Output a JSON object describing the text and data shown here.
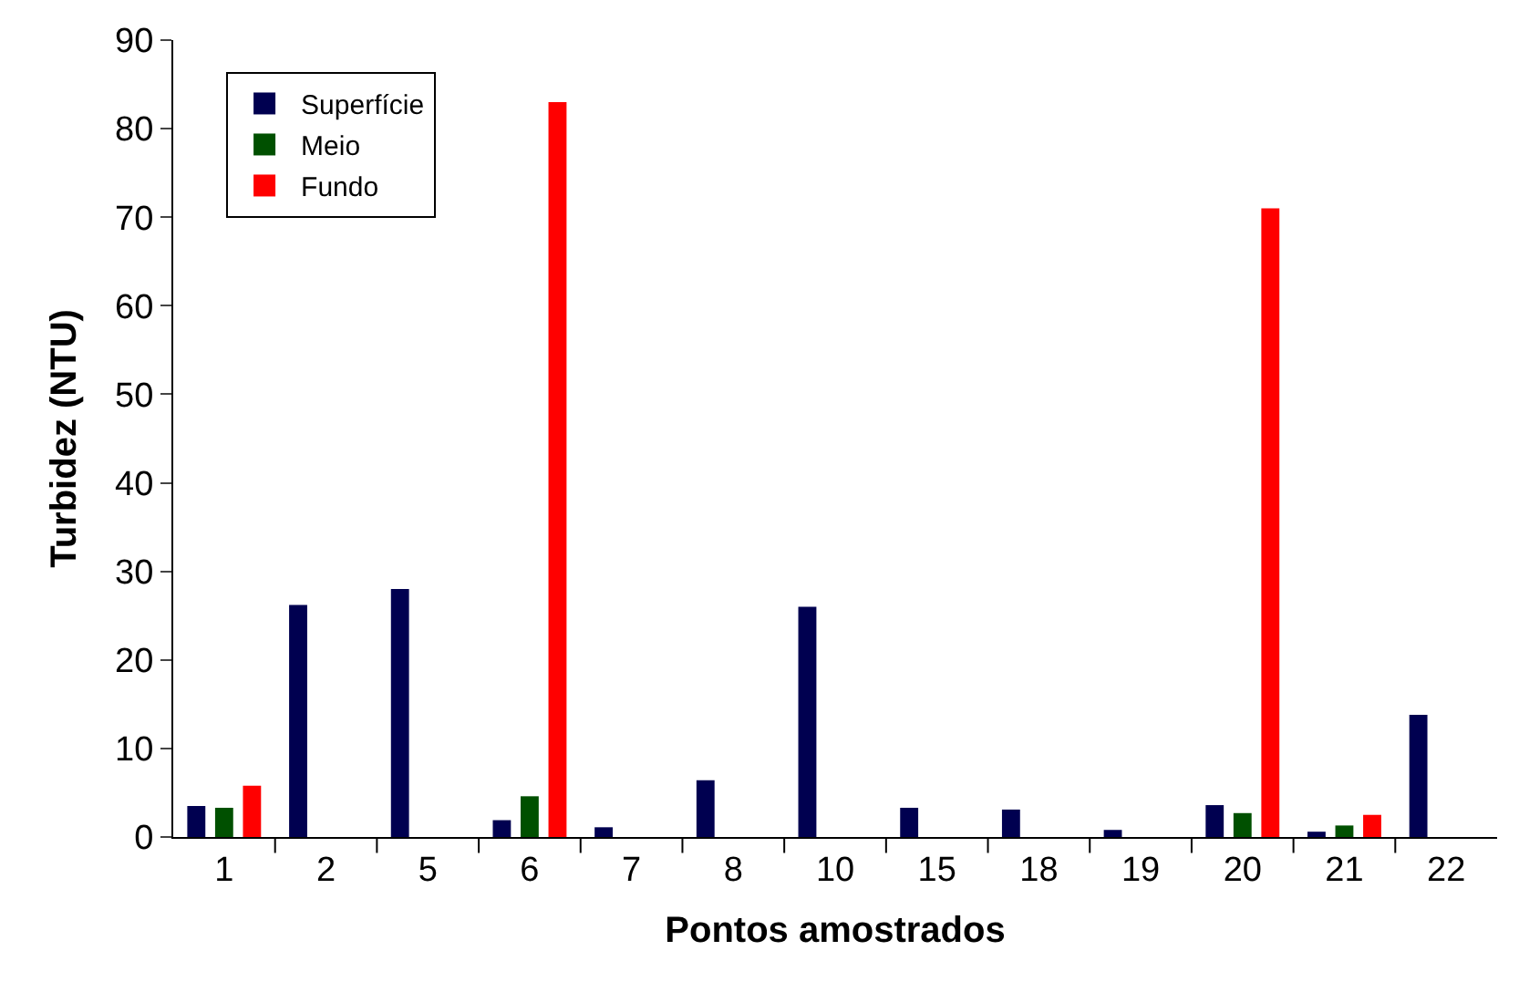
{
  "chart_data": {
    "type": "bar",
    "xlabel": "Pontos amostrados",
    "ylabel": "Turbidez (NTU)",
    "categories": [
      "1",
      "2",
      "5",
      "6",
      "7",
      "8",
      "10",
      "15",
      "18",
      "19",
      "20",
      "21",
      "22"
    ],
    "series": [
      {
        "name": "Superfície",
        "color": "#000050",
        "values": [
          3.5,
          26.2,
          28.0,
          1.9,
          1.1,
          6.4,
          26.0,
          3.3,
          3.1,
          0.8,
          3.6,
          0.6,
          13.8
        ]
      },
      {
        "name": "Meio",
        "color": "#005000",
        "values": [
          3.3,
          null,
          null,
          4.6,
          null,
          null,
          null,
          null,
          null,
          null,
          2.7,
          1.3,
          null
        ]
      },
      {
        "name": "Fundo",
        "color": "#ff0000",
        "values": [
          5.8,
          null,
          null,
          83,
          null,
          null,
          null,
          null,
          null,
          null,
          71,
          2.5,
          null
        ]
      }
    ],
    "ylim": [
      0,
      90
    ],
    "yticks": [
      0,
      10,
      20,
      30,
      40,
      50,
      60,
      70,
      80,
      90
    ],
    "legend": "top left"
  }
}
